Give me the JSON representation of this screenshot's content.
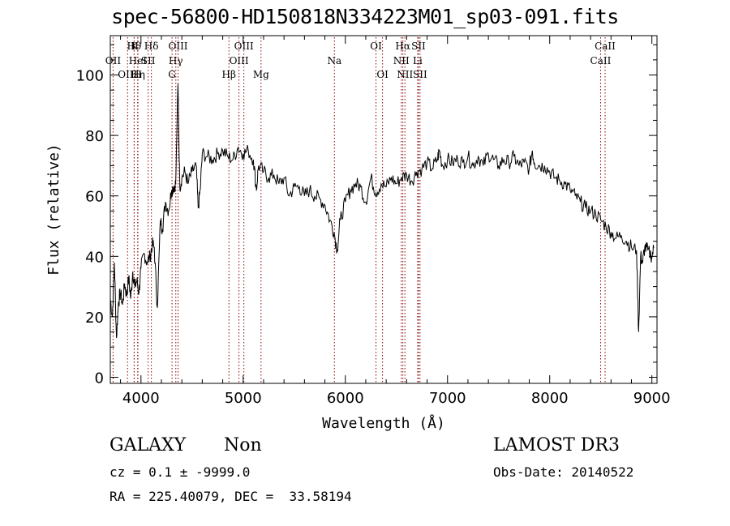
{
  "title": "spec-56800-HD150818N334223M01_sp03-091.fits",
  "info": {
    "class": "GALAXY",
    "subclass": "Non",
    "survey": "LAMOST DR3",
    "cz_line": "cz = 0.1 ± -9999.0",
    "obs_date": "Obs-Date: 20140522",
    "radec_line": "RA = 225.40079, DEC =  33.58194"
  },
  "chart_data": {
    "type": "line",
    "xlabel": "Wavelength (Å)",
    "ylabel": "Flux (relative)",
    "xlim": [
      3700,
      9050
    ],
    "ylim": [
      -2,
      113
    ],
    "xticks": [
      4000,
      5000,
      6000,
      7000,
      8000,
      9000
    ],
    "yticks": [
      0,
      20,
      40,
      60,
      80,
      100
    ],
    "line_color": "#000000",
    "marker_color": "#8b0000",
    "spectrum": {
      "x": [
        3700,
        3720,
        3740,
        3760,
        3780,
        3800,
        3820,
        3840,
        3860,
        3880,
        3900,
        3920,
        3940,
        3960,
        3980,
        4000,
        4030,
        4060,
        4090,
        4110,
        4130,
        4160,
        4190,
        4210,
        4240,
        4270,
        4300,
        4320,
        4340,
        4362,
        4380,
        4400,
        4430,
        4460,
        4500,
        4540,
        4560,
        4580,
        4600,
        4650,
        4700,
        4750,
        4800,
        4850,
        4900,
        4950,
        5000,
        5050,
        5100,
        5130,
        5150,
        5200,
        5250,
        5300,
        5350,
        5400,
        5450,
        5500,
        5550,
        5600,
        5650,
        5700,
        5750,
        5800,
        5850,
        5890,
        5920,
        5950,
        6000,
        6050,
        6100,
        6150,
        6200,
        6250,
        6300,
        6350,
        6400,
        6450,
        6500,
        6550,
        6600,
        6650,
        6700,
        6750,
        6800,
        6850,
        6900,
        6920,
        6950,
        7000,
        7050,
        7100,
        7150,
        7200,
        7250,
        7300,
        7350,
        7400,
        7450,
        7500,
        7550,
        7600,
        7650,
        7700,
        7750,
        7800,
        7830,
        7850,
        7900,
        7950,
        8000,
        8050,
        8100,
        8150,
        8200,
        8250,
        8300,
        8350,
        8400,
        8450,
        8500,
        8550,
        8600,
        8650,
        8700,
        8750,
        8800,
        8850,
        8870,
        8890,
        8910,
        8930,
        8960,
        9000,
        9020
      ],
      "y": [
        26,
        20,
        38,
        13,
        25,
        28,
        24,
        31,
        27,
        33,
        26,
        35,
        30,
        32,
        28,
        36,
        41,
        38,
        40,
        44,
        43,
        23,
        52,
        49,
        58,
        55,
        62,
        63,
        64,
        97,
        63,
        66,
        68,
        64,
        68,
        70,
        56,
        62,
        74,
        73,
        72,
        74,
        75,
        73,
        72,
        76,
        74,
        75,
        72,
        62,
        70,
        68,
        66,
        67,
        64,
        66,
        60,
        63,
        63,
        60,
        62,
        60,
        59,
        57,
        52,
        48,
        42,
        52,
        58,
        62,
        64,
        63,
        58,
        66,
        61,
        64,
        63,
        66,
        64,
        66,
        67,
        65,
        68,
        69,
        71,
        69,
        72,
        75,
        70,
        72,
        71,
        72,
        71,
        73,
        70,
        73,
        70,
        74,
        72,
        70,
        72,
        71,
        73,
        70,
        71,
        69,
        75,
        71,
        70,
        70,
        68,
        66,
        65,
        64,
        62,
        60,
        58,
        56,
        55,
        54,
        52,
        50,
        48,
        46,
        47,
        45,
        43,
        42,
        15,
        40,
        38,
        43,
        42,
        40,
        43
      ]
    },
    "line_markers": [
      {
        "label": "OII",
        "x": 3727,
        "row": 1
      },
      {
        "label": "OIII",
        "x": 3869,
        "row": 2
      },
      {
        "label": "Hθ",
        "x": 3933,
        "row": 0
      },
      {
        "label": "K",
        "x": 3934,
        "row": 0
      },
      {
        "label": "HeI",
        "x": 3969,
        "row": 1
      },
      {
        "label": "Hη",
        "x": 3970,
        "row": 2
      },
      {
        "label": "H",
        "x": 3968,
        "row": 2
      },
      {
        "label": "SII",
        "x": 4070,
        "row": 1
      },
      {
        "label": "Hδ",
        "x": 4102,
        "row": 0
      },
      {
        "label": "G",
        "x": 4304,
        "row": 2
      },
      {
        "label": "Hγ",
        "x": 4341,
        "row": 1
      },
      {
        "label": "OIII",
        "x": 4363,
        "row": 0
      },
      {
        "label": "Hβ",
        "x": 4861,
        "row": 2
      },
      {
        "label": "OIII",
        "x": 4959,
        "row": 1
      },
      {
        "label": "OIII",
        "x": 5007,
        "row": 0
      },
      {
        "label": "Mg",
        "x": 5175,
        "row": 2
      },
      {
        "label": "Na",
        "x": 5893,
        "row": 1
      },
      {
        "label": "OI",
        "x": 6300,
        "row": 0
      },
      {
        "label": "OI",
        "x": 6364,
        "row": 2
      },
      {
        "label": "NII",
        "x": 6548,
        "row": 1
      },
      {
        "label": "Hα",
        "x": 6563,
        "row": 0
      },
      {
        "label": "NII",
        "x": 6583,
        "row": 2
      },
      {
        "label": "Li",
        "x": 6708,
        "row": 1
      },
      {
        "label": "SII",
        "x": 6716,
        "row": 0
      },
      {
        "label": "SII",
        "x": 6731,
        "row": 2
      },
      {
        "label": "CaII",
        "x": 8498,
        "row": 1
      },
      {
        "label": "CaII",
        "x": 8542,
        "row": 0
      }
    ]
  }
}
